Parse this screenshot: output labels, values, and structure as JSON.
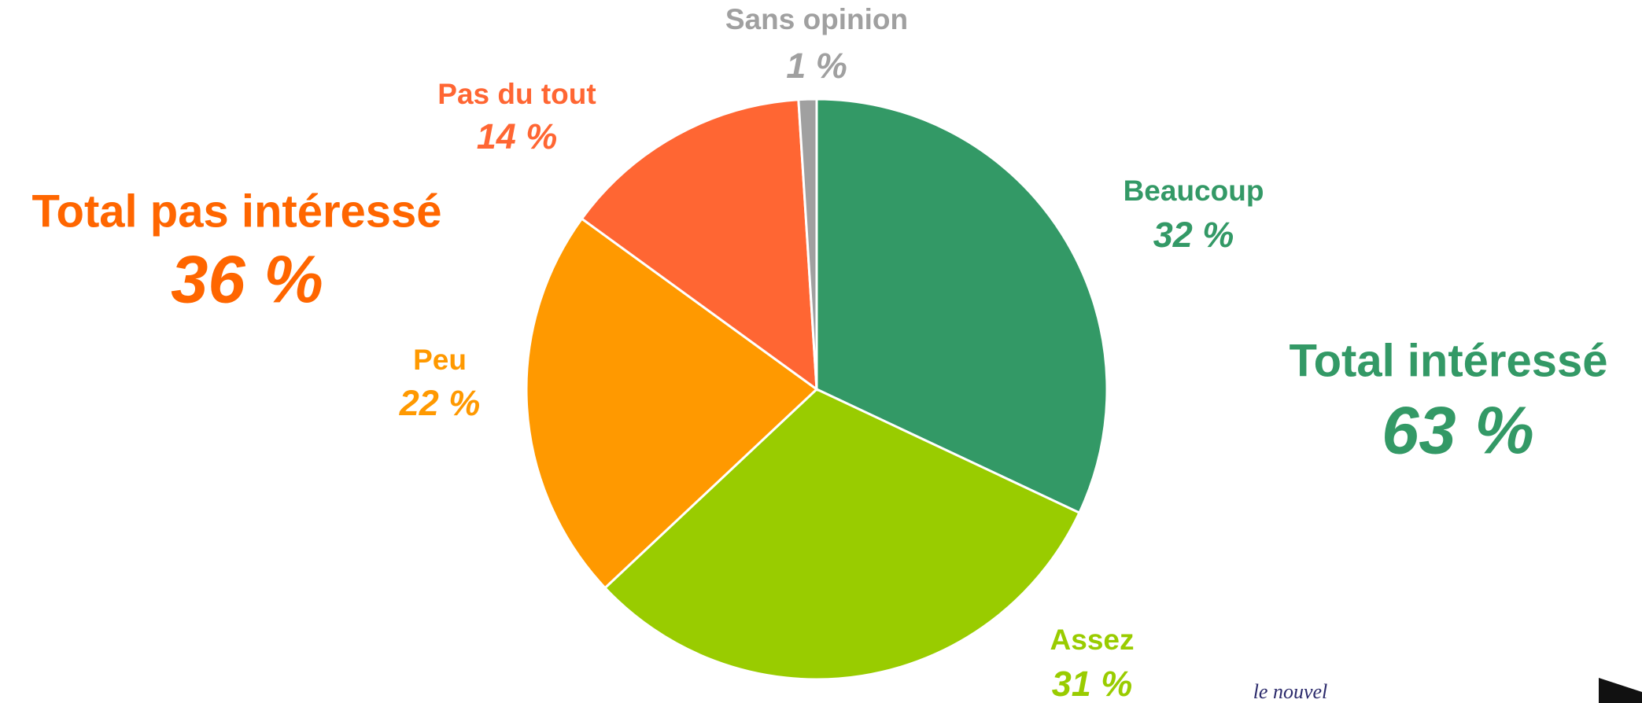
{
  "chart_data": {
    "type": "pie",
    "categories": [
      "Beaucoup",
      "Assez",
      "Peu",
      "Pas du tout",
      "Sans opinion"
    ],
    "values": [
      32,
      31,
      22,
      14,
      1
    ],
    "value_labels": [
      "32 %",
      "31 %",
      "22 %",
      "14 %",
      "1 %"
    ],
    "colors": [
      "#339966",
      "#99cc00",
      "#ff9900",
      "#ff6633",
      "#a0a0a0"
    ],
    "annotations": [
      {
        "text": "Total intéressé",
        "value": 63,
        "label": "63 %",
        "color": "#339966"
      },
      {
        "text": "Total pas intéressé",
        "value": 36,
        "label": "36 %",
        "color": "#ff6600"
      }
    ],
    "logo_text": "le nouvel"
  }
}
